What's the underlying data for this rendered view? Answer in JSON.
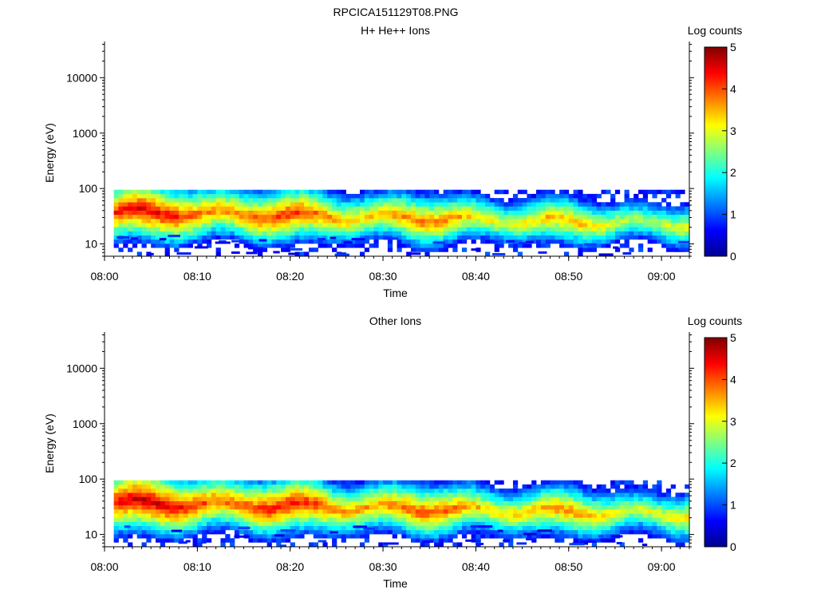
{
  "figure": {
    "filename": "RPCICA151129T08.PNG"
  },
  "chart_data": [
    {
      "type": "heatmap",
      "title": "H+ He++ Ions",
      "xlabel": "Time",
      "ylabel": "Energy (eV)",
      "yscale": "log",
      "ylim": [
        6,
        45000
      ],
      "xlim": [
        "08:00",
        "09:03"
      ],
      "xticks": [
        "08:00",
        "08:10",
        "08:20",
        "08:30",
        "08:40",
        "08:50",
        "09:00"
      ],
      "yticks": [
        10,
        100,
        1000,
        10000
      ],
      "ytick_labels": [
        "10",
        "100",
        "1000",
        "10000"
      ],
      "colorbar": {
        "label": "Log counts",
        "range": [
          0,
          5
        ],
        "ticks": [
          "0",
          "1",
          "2",
          "3",
          "4",
          "5"
        ],
        "colormap": "jet"
      },
      "band": {
        "time_start": "08:01",
        "time_end": "09:03",
        "energy_range_eV": [
          8,
          95
        ],
        "peak_energy_eV": [
          20,
          55
        ],
        "peak_log_counts": 4.3
      }
    },
    {
      "type": "heatmap",
      "title": "Other Ions",
      "xlabel": "Time",
      "ylabel": "Energy (eV)",
      "yscale": "log",
      "ylim": [
        6,
        45000
      ],
      "xlim": [
        "08:00",
        "09:03"
      ],
      "xticks": [
        "08:00",
        "08:10",
        "08:20",
        "08:30",
        "08:40",
        "08:50",
        "09:00"
      ],
      "yticks": [
        10,
        100,
        1000,
        10000
      ],
      "ytick_labels": [
        "10",
        "100",
        "1000",
        "10000"
      ],
      "colorbar": {
        "label": "Log counts",
        "range": [
          0,
          5
        ],
        "ticks": [
          "0",
          "1",
          "2",
          "3",
          "4",
          "5"
        ],
        "colormap": "jet"
      },
      "band": {
        "time_start": "08:01",
        "time_end": "09:03",
        "energy_range_eV": [
          8,
          95
        ],
        "peak_energy_eV": [
          20,
          55
        ],
        "peak_log_counts": 4.5
      }
    }
  ]
}
